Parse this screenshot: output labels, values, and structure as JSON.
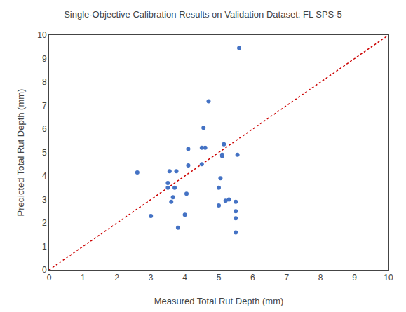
{
  "chart_data": {
    "type": "scatter",
    "title": "Single-Objective Calibration Results on Validation Dataset: FL SPS-5",
    "xlabel": "Measured Total Rut Depth (mm)",
    "ylabel": "Predicted Total Rut Depth (mm)",
    "xlim": [
      0,
      10
    ],
    "ylim": [
      0,
      10
    ],
    "xticks": [
      0,
      1,
      2,
      3,
      4,
      5,
      6,
      7,
      8,
      9,
      10
    ],
    "yticks": [
      0,
      1,
      2,
      3,
      4,
      5,
      6,
      7,
      8,
      9,
      10
    ],
    "grid": false,
    "series": [
      {
        "type": "scatter",
        "color": "#4472c4",
        "marker": "circle",
        "x": [
          2.6,
          3.0,
          3.5,
          3.5,
          3.55,
          3.6,
          3.65,
          3.7,
          3.75,
          3.8,
          4.0,
          4.05,
          4.1,
          4.1,
          4.5,
          4.5,
          4.55,
          4.6,
          4.7,
          5.0,
          5.0,
          5.05,
          5.1,
          5.1,
          5.15,
          5.2,
          5.3,
          5.5,
          5.5,
          5.5,
          5.5,
          5.55,
          5.6
        ],
        "values": [
          4.15,
          2.3,
          3.5,
          3.7,
          4.2,
          2.9,
          3.1,
          3.5,
          4.2,
          1.8,
          2.35,
          3.25,
          4.45,
          5.15,
          4.5,
          5.2,
          6.05,
          5.2,
          7.18,
          2.75,
          3.5,
          3.9,
          4.85,
          4.9,
          5.35,
          2.95,
          3.0,
          1.6,
          2.2,
          2.5,
          2.9,
          4.9,
          9.45
        ]
      },
      {
        "type": "line",
        "color": "#cc0000",
        "line_style": "dotted",
        "x": [
          0,
          10
        ],
        "values": [
          0,
          10
        ]
      }
    ]
  }
}
